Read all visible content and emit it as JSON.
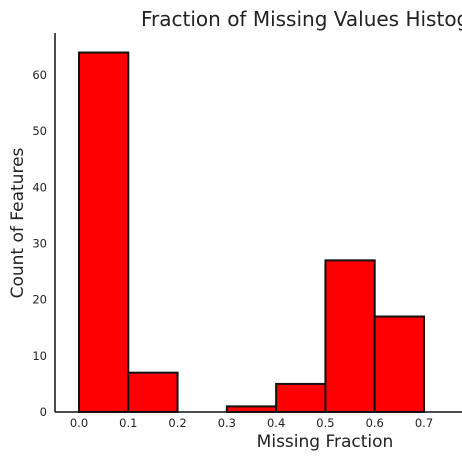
{
  "chart_data": {
    "type": "bar",
    "title": "Fraction of Missing Values Histogram",
    "xlabel": "Missing Fraction",
    "ylabel": "Count of Features",
    "bins": [
      {
        "start": 0.0,
        "end": 0.1,
        "count": 64
      },
      {
        "start": 0.1,
        "end": 0.2,
        "count": 7
      },
      {
        "start": 0.2,
        "end": 0.3,
        "count": 0
      },
      {
        "start": 0.3,
        "end": 0.4,
        "count": 1
      },
      {
        "start": 0.4,
        "end": 0.5,
        "count": 5
      },
      {
        "start": 0.5,
        "end": 0.6,
        "count": 27
      },
      {
        "start": 0.6,
        "end": 0.7,
        "count": 17
      }
    ],
    "xticks": [
      "0.0",
      "0.1",
      "0.2",
      "0.3",
      "0.4",
      "0.5",
      "0.6",
      "0.7"
    ],
    "yticks": [
      "0",
      "10",
      "20",
      "30",
      "40",
      "50",
      "60"
    ],
    "xlim": [
      -0.05,
      0.78
    ],
    "ylim": [
      0,
      67
    ],
    "grid": false,
    "bar_color": "#ff0000",
    "edge_color": "#111111"
  }
}
